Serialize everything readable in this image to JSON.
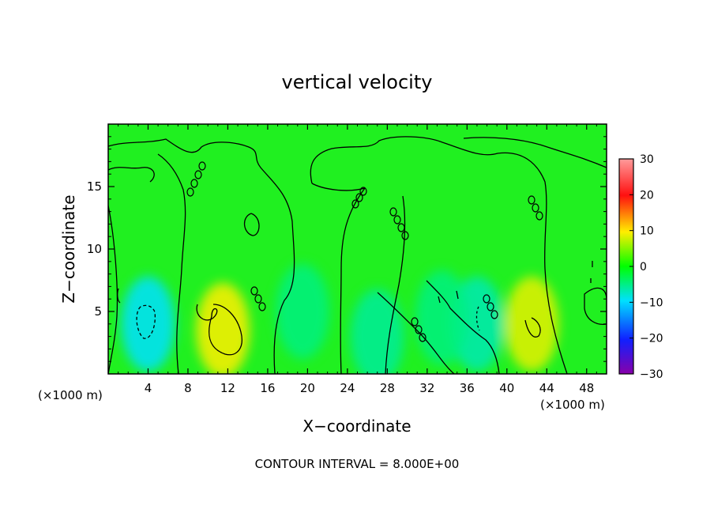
{
  "chart_data": {
    "type": "heatmap",
    "title": "vertical velocity",
    "xlabel": "X−coordinate",
    "ylabel": "Z−coordinate",
    "x_unit_left": "(×1000 m)",
    "x_unit_right": "(×1000 m)",
    "xlim": [
      0,
      50
    ],
    "ylim": [
      0,
      20
    ],
    "x_ticks": [
      4,
      8,
      12,
      16,
      20,
      24,
      28,
      32,
      36,
      40,
      44,
      48
    ],
    "y_ticks": [
      5,
      10,
      15
    ],
    "colorbar": {
      "range": [
        -30,
        30
      ],
      "ticks": [
        30,
        20,
        10,
        0,
        -10,
        -20,
        -30
      ],
      "tick_labels": [
        "30",
        "20",
        "10",
        "0",
        "−10",
        "−20",
        "−30"
      ]
    },
    "contour_interval_text": "CONTOUR INTERVAL = 8.000E+00",
    "field_features": [
      {
        "x": 11.5,
        "z": 3.5,
        "value": 10
      },
      {
        "x": 42.5,
        "z": 4.0,
        "value": 9
      },
      {
        "x": 4.0,
        "z": 4.0,
        "value": -10
      },
      {
        "x": 27.0,
        "z": 3.0,
        "value": -6
      },
      {
        "x": 37.0,
        "z": 4.0,
        "value": -7
      },
      {
        "x": 19.5,
        "z": 5.0,
        "value": -5
      },
      {
        "x": 33.5,
        "z": 4.5,
        "value": -5
      }
    ]
  }
}
